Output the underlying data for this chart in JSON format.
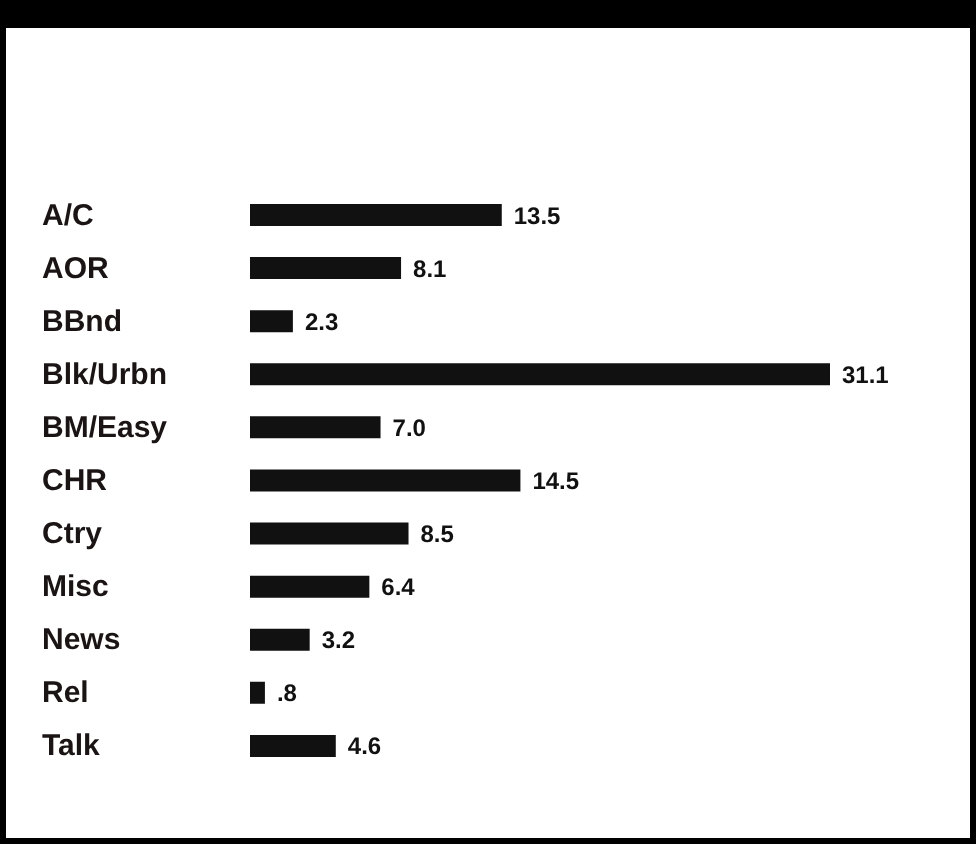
{
  "chart_data": {
    "type": "bar",
    "orientation": "horizontal",
    "categories": [
      "A/C",
      "AOR",
      "BBnd",
      "Blk/Urbn",
      "BM/Easy",
      "CHR",
      "Ctry",
      "Misc",
      "News",
      "Rel",
      "Talk"
    ],
    "values": [
      13.5,
      8.1,
      2.3,
      31.1,
      7.0,
      14.5,
      8.5,
      6.4,
      3.2,
      0.8,
      4.6
    ],
    "value_labels": [
      "13.5",
      "8.1",
      "2.3",
      "31.1",
      "7.0",
      "14.5",
      "8.5",
      "6.4",
      "3.2",
      ".8",
      "4.6"
    ],
    "color": "#111111"
  }
}
